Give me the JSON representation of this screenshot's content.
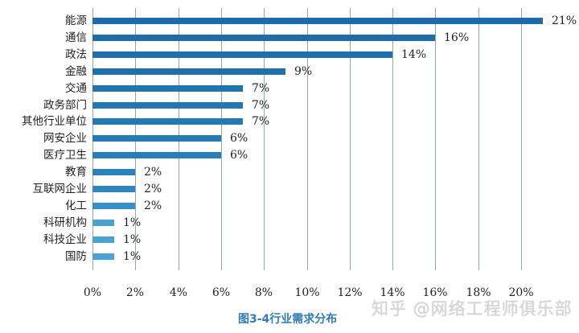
{
  "chart_data": {
    "type": "bar",
    "orientation": "horizontal",
    "title": "",
    "caption": "图3-4行业需求分布",
    "xlabel": "",
    "ylabel": "",
    "xlim": [
      0,
      21
    ],
    "grid": true,
    "categories": [
      "能源",
      "通信",
      "政法",
      "金融",
      "交通",
      "政务部门",
      "其他行业单位",
      "网安企业",
      "医疗卫生",
      "教育",
      "互联网企业",
      "化工",
      "科研机构",
      "科技企业",
      "国防"
    ],
    "values": [
      21,
      16,
      14,
      9,
      7,
      7,
      7,
      6,
      6,
      2,
      2,
      2,
      1,
      1,
      1
    ],
    "value_labels": [
      "21%",
      "16%",
      "14%",
      "9%",
      "7%",
      "7%",
      "7%",
      "6%",
      "6%",
      "2%",
      "2%",
      "2%",
      "1%",
      "1%",
      "1%"
    ],
    "x_ticks": [
      "0%",
      "2%",
      "4%",
      "6%",
      "8%",
      "10%",
      "12%",
      "14%",
      "16%",
      "18%",
      "20%"
    ],
    "bar_colors": [
      "#1f6aa8",
      "#1f6ca9",
      "#206eab",
      "#2070ad",
      "#2274af",
      "#2376b1",
      "#2478b3",
      "#267bb5",
      "#287eb8",
      "#2b82bb",
      "#2e86be",
      "#3a90c6",
      "#4ba0d2",
      "#4ca1d3",
      "#4da2d4"
    ]
  },
  "watermark": "知乎 @网络工程师俱乐部"
}
